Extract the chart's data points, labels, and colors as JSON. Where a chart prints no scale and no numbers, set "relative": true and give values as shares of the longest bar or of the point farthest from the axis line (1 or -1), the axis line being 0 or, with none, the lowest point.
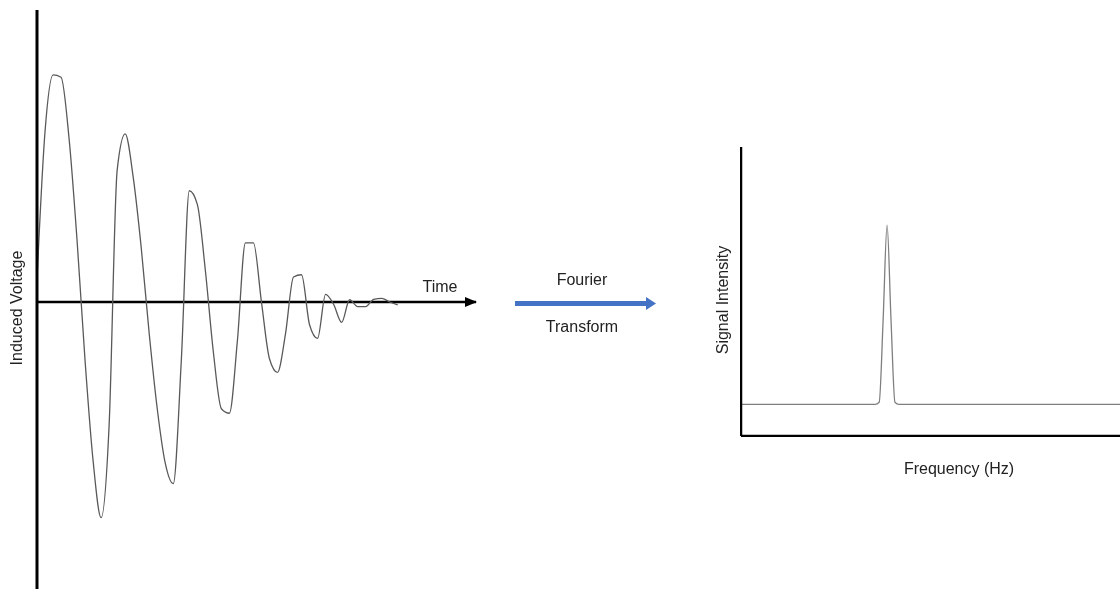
{
  "chart_data": [
    {
      "type": "line",
      "xlabel": "Time",
      "ylabel": "Induced Voltage",
      "relative": true,
      "marker": "none",
      "annotations": [
        "Fourier",
        "Transform"
      ],
      "categories": [
        null,
        null,
        null,
        null,
        null,
        null,
        null,
        null,
        null,
        null,
        null,
        null,
        null,
        null,
        null,
        null,
        null,
        null,
        null,
        null,
        null,
        null,
        null,
        null,
        null,
        null,
        null,
        null,
        null,
        null,
        null,
        null,
        null,
        null,
        null,
        null,
        null,
        null,
        null,
        null,
        null,
        null,
        null,
        null,
        null,
        null
      ],
      "series": [
        {
          "color": "#595959",
          "values": [
            0.1,
            0.75,
            1,
            0.99,
            0.72,
            0.27,
            -0.26,
            -0.7,
            -0.95,
            -0.54,
            0.58,
            0.74,
            0.55,
            0.24,
            -0.14,
            -0.47,
            -0.71,
            -0.8,
            -0.26,
            0.49,
            0.43,
            0.14,
            -0.22,
            -0.47,
            -0.49,
            -0.17,
            0.26,
            0.26,
            0,
            -0.25,
            -0.31,
            -0.14,
            0.11,
            0.12,
            -0.1,
            -0.16,
            0.034,
            -0.01,
            -0.09,
            0.01,
            -0.02,
            -0.02,
            0.012,
            0.016,
            0,
            -0.013
          ]
        }
      ]
    },
    {
      "type": "line",
      "xlabel": "Frequency (Hz)",
      "ylabel": "Signal Intensity",
      "relative": true,
      "marker": "none",
      "categories": [
        null,
        null,
        null,
        null,
        null,
        null,
        null,
        null,
        null,
        null,
        null,
        null,
        null,
        null,
        null,
        null,
        null,
        null,
        null,
        null,
        null,
        null,
        null,
        null,
        null,
        null,
        null,
        null,
        null,
        null,
        null,
        null,
        null,
        null,
        null,
        null,
        null,
        null,
        null,
        null,
        null,
        null,
        null,
        null,
        null,
        null,
        null,
        null,
        null,
        null,
        null,
        null,
        null,
        null,
        null,
        null,
        null,
        null,
        null,
        null,
        null,
        null,
        null,
        null,
        null,
        null,
        null,
        null,
        null,
        null,
        null,
        null,
        null,
        null,
        null,
        null,
        null,
        null,
        null,
        null,
        null,
        null,
        null,
        null,
        null,
        null,
        null,
        null,
        null,
        null,
        null,
        null,
        null,
        null,
        null,
        null,
        null
      ],
      "series": [
        {
          "color": "#7f7f7f",
          "values": [
            0.15,
            0.15,
            0.15,
            0.15,
            0.15,
            0.15,
            0.15,
            0.15,
            0.15,
            0.15,
            0.15,
            0.15,
            0.15,
            0.15,
            0.15,
            0.15,
            0.15,
            0.15,
            0.15,
            0.15,
            0.15,
            0.15,
            0.15,
            0.15,
            0.15,
            0.15,
            0.15,
            0.15,
            0.15,
            0.15,
            0.15,
            0.15,
            0.15,
            0.15,
            0.15,
            0.16,
            0.55,
            1,
            0.55,
            0.16,
            0.15,
            0.15,
            0.15,
            0.15,
            0.15,
            0.15,
            0.15,
            0.15,
            0.15,
            0.15,
            0.15,
            0.15,
            0.15,
            0.15,
            0.15,
            0.15,
            0.15,
            0.15,
            0.15,
            0.15,
            0.15,
            0.15,
            0.15,
            0.15,
            0.15,
            0.15,
            0.15,
            0.15,
            0.15,
            0.15,
            0.15,
            0.15,
            0.15,
            0.15,
            0.15,
            0.15,
            0.15,
            0.15,
            0.15,
            0.15,
            0.15,
            0.15,
            0.15,
            0.15,
            0.15,
            0.15,
            0.15,
            0.15,
            0.15,
            0.15,
            0.15,
            0.15,
            0.15,
            0.15,
            0.15,
            0.15,
            0.15
          ]
        }
      ]
    }
  ]
}
